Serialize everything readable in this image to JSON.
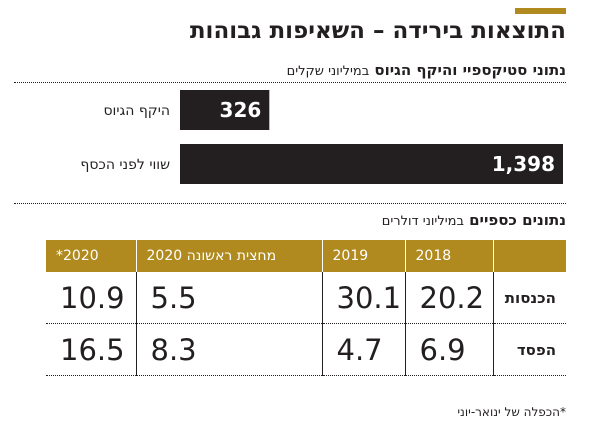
{
  "title": "התוצאות בירידה – השאיפות גבוהות",
  "section1": {
    "bold": "נתוני סטיקספיי והיקף הגיוס",
    "unit": "במיליוני שקלים"
  },
  "section2": {
    "bold": "נתונים כספיים",
    "unit": "במיליוני דולרים"
  },
  "colors": {
    "accent": "#b08a1e",
    "bar": "#231f20",
    "text": "#231f20"
  },
  "chart_data": [
    {
      "type": "bar",
      "orientation": "horizontal",
      "categories": [
        "היקף הגיוס",
        "שווי לפני הכסף"
      ],
      "values": [
        326,
        1398
      ],
      "data_labels": [
        "326",
        "1,398"
      ],
      "bar_side": "left"
    },
    {
      "type": "table",
      "columns": [
        "*2020",
        "מחצית ראשונה 2020",
        "2019",
        "2018",
        ""
      ],
      "rows": [
        {
          "label": "הכנסות",
          "cells": [
            "10.9",
            "5.5",
            "30.1",
            "20.2"
          ]
        },
        {
          "label": "הפסד",
          "cells": [
            "16.5",
            "8.3",
            "4.7",
            "6.9"
          ]
        }
      ]
    }
  ],
  "footnote": "*הכפלה של ינואר-יוני"
}
